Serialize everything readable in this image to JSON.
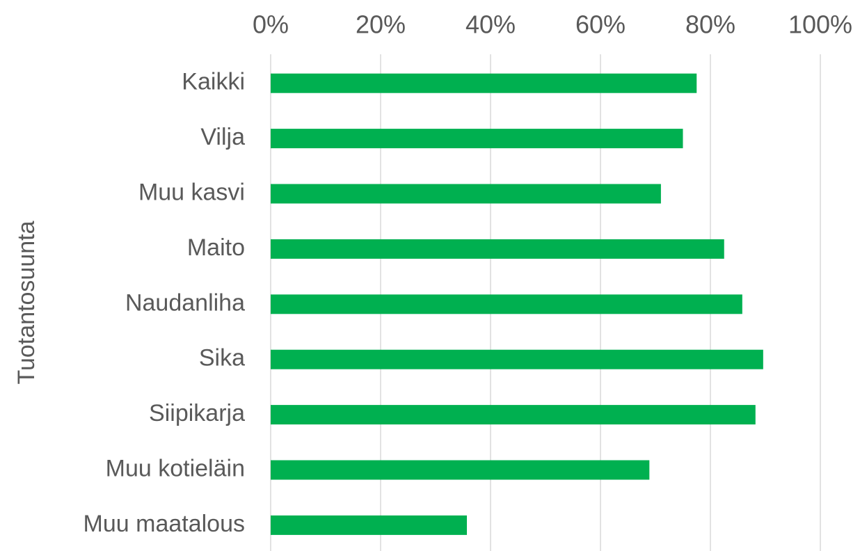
{
  "chart_data": {
    "type": "bar",
    "orientation": "horizontal",
    "y_label": "Tuotantosuunta",
    "categories": [
      "Kaikki",
      "Vilja",
      "Muu kasvi",
      "Maito",
      "Naudanliha",
      "Sika",
      "Siipikarja",
      "Muu kotieläin",
      "Muu maatalous"
    ],
    "values": [
      77.5,
      75,
      71,
      82.5,
      85.8,
      89.6,
      88.2,
      68.9,
      35.7
    ],
    "color": "#00b050",
    "xlim": [
      0,
      100
    ],
    "xticks": [
      {
        "value": 0,
        "label": "0%"
      },
      {
        "value": 20,
        "label": "20%"
      },
      {
        "value": 40,
        "label": "40%"
      },
      {
        "value": 60,
        "label": "60%"
      },
      {
        "value": 80,
        "label": "80%"
      },
      {
        "value": 100,
        "label": "100%"
      }
    ],
    "grid": true
  }
}
